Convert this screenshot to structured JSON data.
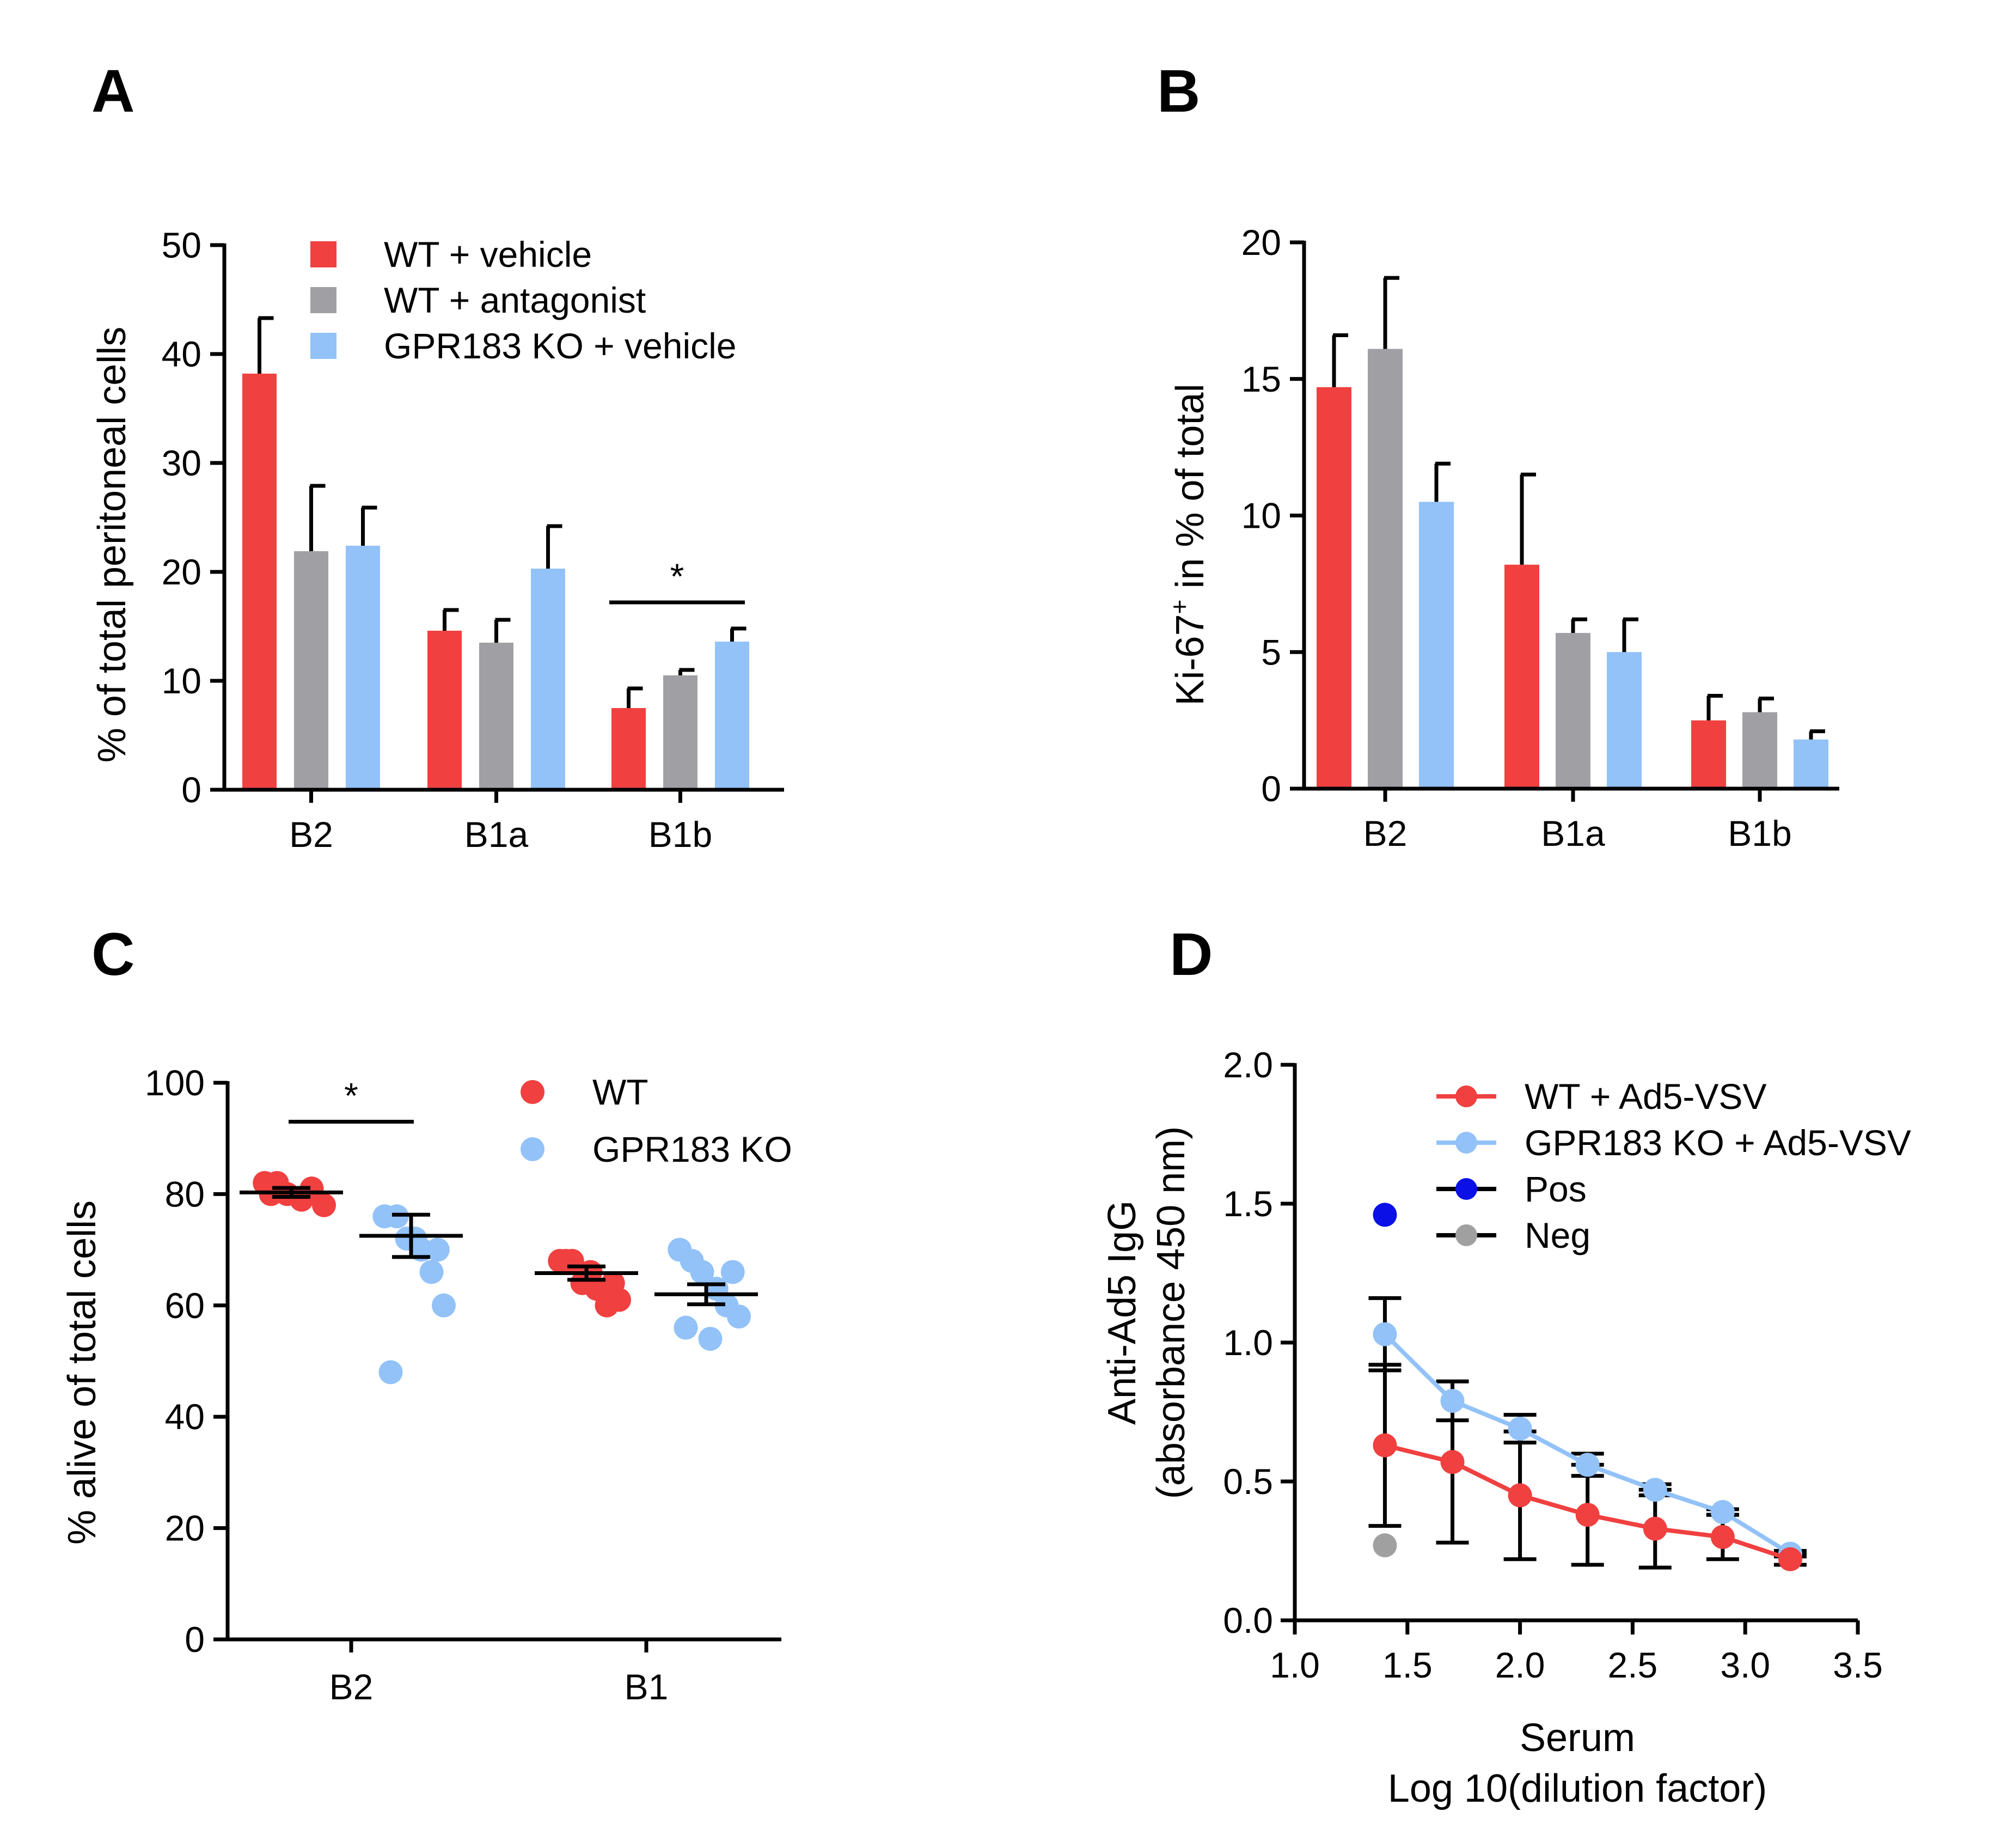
{
  "colors": {
    "red": "#f04040",
    "gray": "#a0a0a4",
    "blue": "#92c2f8",
    "pos": "#0a10e6",
    "neg": "#a0a0a0",
    "axis": "#000000"
  },
  "chart_data": [
    {
      "panel": "A",
      "type": "bar",
      "ylabel": "% of total peritoneal cells",
      "ylim": [
        0,
        50
      ],
      "yticks": [
        "0",
        "10",
        "20",
        "30",
        "40",
        "50"
      ],
      "categories": [
        "B2",
        "B1a",
        "B1b"
      ],
      "series": [
        {
          "name": "WT + vehicle",
          "color_key": "red",
          "values": [
            38.2,
            14.6,
            7.5
          ],
          "errors": [
            5.1,
            1.9,
            1.8
          ]
        },
        {
          "name": "WT + antagonist",
          "color_key": "gray",
          "values": [
            21.9,
            13.5,
            10.5
          ],
          "errors": [
            6.0,
            2.1,
            0.5
          ]
        },
        {
          "name": "GPR183 KO + vehicle",
          "color_key": "blue",
          "values": [
            22.4,
            20.3,
            13.6
          ],
          "errors": [
            3.5,
            3.9,
            1.2
          ]
        }
      ],
      "significance": [
        {
          "category": "B1b",
          "from_series": 0,
          "to_series": 2,
          "label": "*",
          "y": 17.2
        }
      ]
    },
    {
      "panel": "B",
      "type": "bar",
      "ylabel": "Ki-67",
      "ylabel_sup": "+",
      "ylabel_rest": " in % of total",
      "ylim": [
        0,
        20
      ],
      "yticks": [
        "0",
        "5",
        "10",
        "15",
        "20"
      ],
      "categories": [
        "B2",
        "B1a",
        "B1b"
      ],
      "series": [
        {
          "name": "WT + vehicle",
          "color_key": "red",
          "values": [
            14.7,
            8.2,
            2.5
          ],
          "errors": [
            1.9,
            3.3,
            0.9
          ]
        },
        {
          "name": "WT + antagonist",
          "color_key": "gray",
          "values": [
            16.1,
            5.7,
            2.8
          ],
          "errors": [
            2.6,
            0.5,
            0.5
          ]
        },
        {
          "name": "GPR183 KO + vehicle",
          "color_key": "blue",
          "values": [
            10.5,
            5.0,
            1.8
          ],
          "errors": [
            1.4,
            1.2,
            0.3
          ]
        }
      ]
    },
    {
      "panel": "C",
      "type": "scatter",
      "ylabel": "% alive of total cells",
      "ylim": [
        0,
        100
      ],
      "yticks": [
        "0",
        "20",
        "40",
        "60",
        "80",
        "100"
      ],
      "categories": [
        "B2",
        "B1"
      ],
      "series": [
        {
          "name": "WT",
          "color_key": "red",
          "points": [
            [
              82,
              82,
              80,
              79,
              81,
              78,
              80
            ],
            [
              68,
              68,
              64,
              63,
              60,
              61,
              68,
              66,
              64
            ]
          ],
          "mean": [
            80.3,
            65.8
          ],
          "sem": [
            0.8,
            1.2
          ]
        },
        {
          "name": "GPR183 KO",
          "color_key": "blue",
          "points": [
            [
              76,
              76,
              72,
              70,
              66,
              60,
              48,
              72,
              70
            ],
            [
              70,
              68,
              66,
              63,
              60,
              58,
              56,
              54,
              66
            ]
          ],
          "mean": [
            72.5,
            62.0
          ],
          "sem": [
            3.8,
            1.8
          ]
        }
      ],
      "significance": [
        {
          "category": "B2",
          "label": "*",
          "y": 93
        }
      ]
    },
    {
      "panel": "D",
      "type": "line",
      "ylabel_line1": "Anti-Ad5 IgG",
      "ylabel_line2": "(absorbance 450 nm)",
      "xlabel_line1": "Serum",
      "xlabel_line2": "Log 10(dilution factor)",
      "xlim": [
        1.0,
        3.5
      ],
      "ylim": [
        0.0,
        2.0
      ],
      "xticks": [
        "1.0",
        "1.5",
        "2.0",
        "2.5",
        "3.0",
        "3.5"
      ],
      "yticks": [
        "0.0",
        "0.5",
        "1.0",
        "1.5",
        "2.0"
      ],
      "series": [
        {
          "name": "WT + Ad5-VSV",
          "color_key": "red",
          "x": [
            1.4,
            1.7,
            2.0,
            2.3,
            2.6,
            2.9,
            3.2
          ],
          "y": [
            0.63,
            0.57,
            0.45,
            0.38,
            0.33,
            0.3,
            0.22
          ],
          "err": [
            0.29,
            0.29,
            0.23,
            0.18,
            0.14,
            0.08,
            0.02
          ]
        },
        {
          "name": "GPR183 KO + Ad5-VSV",
          "color_key": "blue",
          "x": [
            1.4,
            1.7,
            2.0,
            2.3,
            2.6,
            2.9,
            3.2
          ],
          "y": [
            1.03,
            0.79,
            0.69,
            0.56,
            0.47,
            0.39,
            0.24
          ],
          "err": [
            0.13,
            0.07,
            0.05,
            0.04,
            0.02,
            0.01,
            0.01
          ]
        },
        {
          "name": "Pos",
          "color_key": "pos",
          "x": [
            1.4
          ],
          "y": [
            1.46
          ]
        },
        {
          "name": "Neg",
          "color_key": "neg",
          "x": [
            1.4
          ],
          "y": [
            0.27
          ]
        }
      ]
    }
  ]
}
